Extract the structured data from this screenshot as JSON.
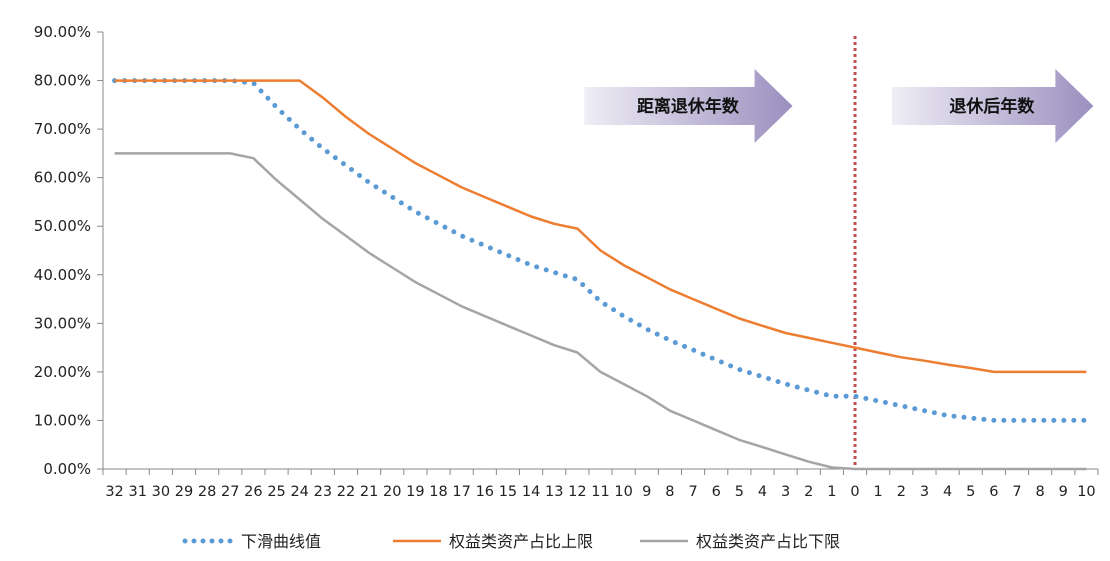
{
  "chart_data": {
    "type": "line",
    "x": [
      "32",
      "31",
      "30",
      "29",
      "28",
      "27",
      "26",
      "25",
      "24",
      "23",
      "22",
      "21",
      "20",
      "19",
      "18",
      "17",
      "16",
      "15",
      "14",
      "13",
      "12",
      "11",
      "10",
      "9",
      "8",
      "7",
      "6",
      "5",
      "4",
      "3",
      "2",
      "1",
      "0",
      "1",
      "2",
      "3",
      "4",
      "5",
      "6",
      "7",
      "8",
      "9",
      "10"
    ],
    "ylim": [
      0,
      90
    ],
    "yticks": [
      "0.00%",
      "10.00%",
      "20.00%",
      "30.00%",
      "40.00%",
      "50.00%",
      "60.00%",
      "70.00%",
      "80.00%",
      "90.00%"
    ],
    "series": [
      {
        "name": "下滑曲线值",
        "color": "#5b9bd5",
        "style": "dotted",
        "values": [
          80,
          80,
          80,
          80,
          80,
          80,
          79.5,
          74.5,
          70,
          66,
          62.5,
          59,
          56,
          53,
          50.5,
          48,
          46,
          44,
          42,
          40.5,
          39,
          34.5,
          31.5,
          28.8,
          26.5,
          24.5,
          22.5,
          20.5,
          19,
          17.5,
          16.2,
          15,
          15,
          14,
          13,
          12,
          11,
          10.5,
          10,
          10,
          10,
          10,
          10
        ]
      },
      {
        "name": "权益类资产占比上限",
        "color": "#ed7d31",
        "style": "solid",
        "values": [
          80,
          80,
          80,
          80,
          80,
          80,
          80,
          80,
          80,
          76.5,
          72.5,
          69,
          66,
          63,
          60.5,
          58,
          56,
          54,
          52,
          50.5,
          49.5,
          45,
          42,
          39.5,
          37,
          35,
          33,
          31,
          29.5,
          28,
          27,
          26,
          25,
          24,
          23,
          22.3,
          21.5,
          20.8,
          20,
          20,
          20,
          20,
          20
        ]
      },
      {
        "name": "权益类资产占比下限",
        "color": "#a5a5a5",
        "style": "solid",
        "values": [
          65,
          65,
          65,
          65,
          65,
          65,
          64,
          59.5,
          55.5,
          51.5,
          48,
          44.5,
          41.5,
          38.5,
          36,
          33.5,
          31.5,
          29.5,
          27.5,
          25.5,
          24,
          20,
          17.5,
          15,
          12,
          10,
          8,
          6,
          4.5,
          3,
          1.5,
          0.3,
          0,
          0,
          0,
          0,
          0,
          0,
          0,
          0,
          0,
          0,
          0
        ]
      }
    ],
    "divider": {
      "x_index": 32,
      "color": "#c0504d",
      "style": "dotted"
    },
    "annotations": [
      {
        "text": "距离退休年数",
        "x_from_index": 20.3,
        "x_to_index": 29.3
      },
      {
        "text": "退休后年数",
        "x_from_index": 33.6,
        "x_to_index": 42.3
      }
    ],
    "legend_position": "bottom"
  }
}
